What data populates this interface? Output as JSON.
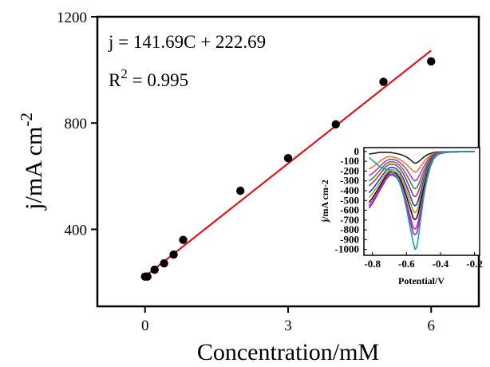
{
  "chart_data": [
    {
      "type": "scatter",
      "xlabel": "Concentration/mM",
      "ylabel_base": "j/mA cm",
      "ylabel_sup": "-2",
      "xlim": [
        -1.0,
        7.0
      ],
      "ylim": [
        110,
        1200
      ],
      "xticks": [
        0,
        3,
        6
      ],
      "yticks": [
        400,
        800,
        1200
      ],
      "annotation": {
        "equation": "j = 141.69C + 222.69",
        "r2_prefix": "R",
        "r2_sup": "2",
        "r2_value": " = 0.995"
      },
      "series": [
        {
          "points": {
            "x": [
              0.0,
              0.05,
              0.2,
              0.4,
              0.6,
              0.8,
              2.0,
              3.0,
              4.0,
              5.0,
              6.0
            ],
            "y": [
              222,
              222,
              248,
              272,
              305,
              360,
              545,
              668,
              795,
              955,
              1032
            ]
          },
          "color": "#000000"
        }
      ],
      "fit_line": {
        "slope": 141.69,
        "intercept": 222.69,
        "x_range": [
          0.0,
          6.0
        ],
        "color": "#e0151b"
      }
    },
    {
      "type": "line",
      "xlabel": "Potential/V",
      "ylabel": "j/mA cm-2",
      "xlim": [
        -0.85,
        -0.17
      ],
      "ylim": [
        -1060,
        40
      ],
      "xticks": [
        -0.8,
        -0.6,
        -0.4,
        -0.2
      ],
      "xtick_labels": [
        "-0.8",
        "-0.6",
        "-0.4",
        "-0.2"
      ],
      "yticks": [
        0,
        -100,
        -200,
        -300,
        -400,
        -500,
        -600,
        -700,
        -800,
        -900,
        -1000
      ],
      "curve_x": [
        -0.82,
        -0.8,
        -0.78,
        -0.76,
        -0.74,
        -0.72,
        -0.7,
        -0.68,
        -0.66,
        -0.64,
        -0.62,
        -0.6,
        -0.58,
        -0.56,
        -0.55,
        -0.54,
        -0.53,
        -0.52,
        -0.5,
        -0.48,
        -0.46,
        -0.44,
        -0.42,
        -0.4,
        -0.38,
        -0.36,
        -0.34,
        -0.3,
        -0.25,
        -0.2
      ],
      "series": [
        {
          "color": "#222222",
          "values": [
            -25,
            -20,
            -15,
            -10,
            -8,
            -8,
            -10,
            -14,
            -20,
            -28,
            -40,
            -55,
            -80,
            -110,
            -120,
            -115,
            -105,
            -90,
            -60,
            -35,
            -20,
            -10,
            -6,
            -4,
            -3,
            -2,
            -2,
            -1,
            -1,
            0
          ]
        },
        {
          "color": "#e8821e",
          "values": [
            -180,
            -160,
            -135,
            -105,
            -80,
            -60,
            -50,
            -55,
            -65,
            -80,
            -100,
            -130,
            -165,
            -200,
            -210,
            -205,
            -185,
            -160,
            -110,
            -70,
            -40,
            -20,
            -12,
            -8,
            -6,
            -4,
            -3,
            -2,
            -1,
            0
          ]
        },
        {
          "color": "#d42ad4",
          "values": [
            -245,
            -225,
            -195,
            -160,
            -125,
            -95,
            -80,
            -80,
            -90,
            -110,
            -140,
            -180,
            -235,
            -290,
            -300,
            -290,
            -265,
            -230,
            -160,
            -100,
            -55,
            -28,
            -15,
            -10,
            -7,
            -5,
            -4,
            -2,
            -1,
            0
          ]
        },
        {
          "color": "#2a9a3a",
          "values": [
            -300,
            -275,
            -240,
            -200,
            -160,
            -125,
            -105,
            -105,
            -115,
            -140,
            -180,
            -235,
            -300,
            -370,
            -380,
            -370,
            -340,
            -295,
            -205,
            -130,
            -70,
            -35,
            -18,
            -11,
            -8,
            -6,
            -4,
            -2,
            -1,
            0
          ]
        },
        {
          "color": "#b8336a",
          "values": [
            -350,
            -320,
            -285,
            -240,
            -195,
            -155,
            -130,
            -130,
            -140,
            -170,
            -220,
            -290,
            -370,
            -450,
            -460,
            -450,
            -410,
            -355,
            -250,
            -160,
            -85,
            -40,
            -20,
            -12,
            -9,
            -6,
            -4,
            -2,
            -1,
            0
          ]
        },
        {
          "color": "#1f3fd0",
          "values": [
            -420,
            -385,
            -340,
            -290,
            -240,
            -195,
            -165,
            -162,
            -175,
            -210,
            -270,
            -350,
            -445,
            -540,
            -555,
            -540,
            -495,
            -430,
            -300,
            -190,
            -100,
            -48,
            -24,
            -14,
            -10,
            -7,
            -5,
            -2,
            -1,
            0
          ]
        },
        {
          "color": "#9ea31e",
          "values": [
            -470,
            -430,
            -380,
            -330,
            -275,
            -225,
            -190,
            -185,
            -200,
            -240,
            -310,
            -400,
            -505,
            -610,
            -625,
            -610,
            -560,
            -485,
            -340,
            -215,
            -115,
            -55,
            -27,
            -16,
            -11,
            -8,
            -5,
            -3,
            -1,
            0
          ]
        },
        {
          "color": "#111111",
          "values": [
            -520,
            -475,
            -420,
            -365,
            -305,
            -250,
            -212,
            -208,
            -225,
            -270,
            -350,
            -455,
            -570,
            -680,
            -695,
            -680,
            -625,
            -540,
            -380,
            -240,
            -130,
            -62,
            -30,
            -18,
            -12,
            -8,
            -6,
            -3,
            -1,
            0
          ]
        },
        {
          "color": "#e3209a",
          "values": [
            -555,
            -505,
            -450,
            -390,
            -330,
            -272,
            -232,
            -228,
            -248,
            -300,
            -395,
            -515,
            -650,
            -775,
            -790,
            -775,
            -710,
            -615,
            -430,
            -270,
            -145,
            -70,
            -34,
            -20,
            -13,
            -9,
            -6,
            -3,
            -1,
            0
          ]
        },
        {
          "color": "#8a2ad4",
          "values": [
            -580,
            -530,
            -470,
            -405,
            -345,
            -285,
            -245,
            -240,
            -262,
            -318,
            -420,
            -550,
            -700,
            -835,
            -850,
            -835,
            -765,
            -660,
            -460,
            -290,
            -155,
            -75,
            -36,
            -21,
            -14,
            -9,
            -6,
            -3,
            -1,
            0
          ]
        },
        {
          "color": "#1aa6a0",
          "values": [
            -60,
            -90,
            -120,
            -150,
            -170,
            -180,
            -190,
            -210,
            -250,
            -320,
            -430,
            -580,
            -760,
            -930,
            -1000,
            -980,
            -880,
            -740,
            -480,
            -280,
            -140,
            -65,
            -30,
            -17,
            -11,
            -8,
            -5,
            -3,
            -1,
            0
          ]
        }
      ]
    }
  ]
}
